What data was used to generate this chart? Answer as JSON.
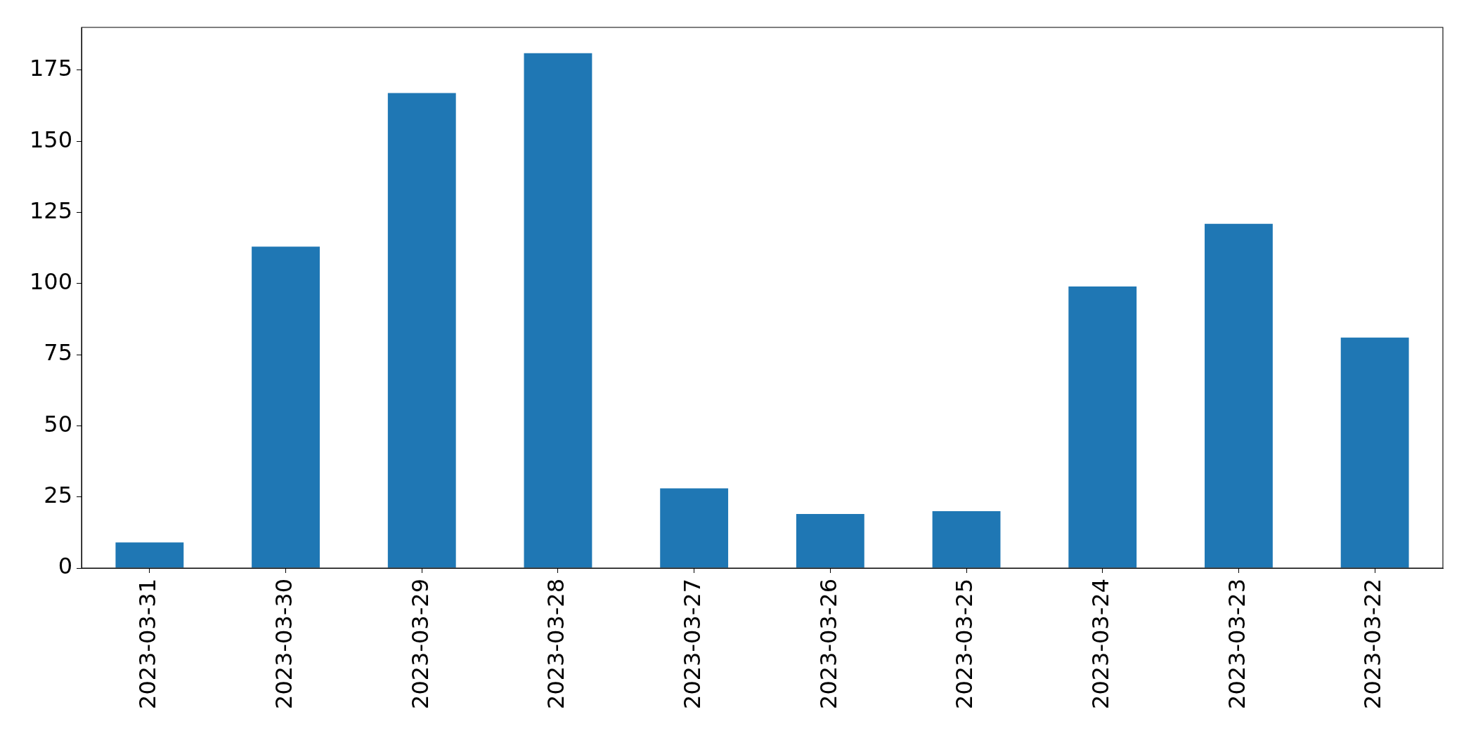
{
  "chart_data": {
    "type": "bar",
    "categories": [
      "2023-03-31",
      "2023-03-30",
      "2023-03-29",
      "2023-03-28",
      "2023-03-27",
      "2023-03-26",
      "2023-03-25",
      "2023-03-24",
      "2023-03-23",
      "2023-03-22"
    ],
    "values": [
      9,
      113,
      167,
      181,
      28,
      19,
      20,
      99,
      121,
      81
    ],
    "color": "#1f77b4",
    "ylim": [
      0,
      190.05
    ],
    "yticks": [
      0,
      25,
      50,
      75,
      100,
      125,
      150,
      175
    ],
    "grid": false
  }
}
